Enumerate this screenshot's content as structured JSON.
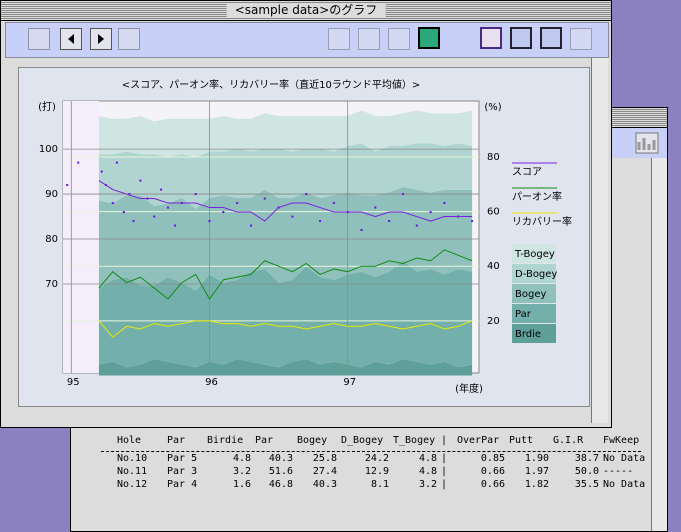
{
  "window": {
    "title": "<sample data>のグラフ"
  },
  "chart_data": {
    "type": "stacked-area-line",
    "title": "<スコア、パーオン率、リカバリー率（直近10ラウンド平均値）>",
    "ylabel": "(打)",
    "y2label": "(%)",
    "xlabel": "(年度)",
    "x": [
      95.2,
      95.3,
      95.4,
      95.5,
      95.6,
      95.7,
      95.8,
      95.9,
      96.0,
      96.1,
      96.2,
      96.3,
      96.4,
      96.5,
      96.6,
      96.7,
      96.8,
      96.9,
      97.0,
      97.1,
      97.2,
      97.3,
      97.4,
      97.5,
      97.6,
      97.7,
      97.8,
      97.9
    ],
    "xlim": [
      94.94,
      97.95
    ],
    "xticks": [
      95,
      96,
      97
    ],
    "ylim": [
      50.2,
      110.7
    ],
    "yticks": [
      70,
      80,
      90,
      100
    ],
    "y2lim": [
      0.9,
      100.5
    ],
    "y2ticks": [
      20,
      40,
      60,
      80
    ],
    "grid": true,
    "series": [
      {
        "name": "スコア",
        "color": "#7a1fe0",
        "axis": "y",
        "values": [
          93,
          91,
          90,
          89,
          89,
          88,
          88,
          88,
          87,
          87,
          86,
          86,
          84,
          87,
          88,
          88,
          87,
          86,
          86,
          86,
          85,
          86,
          86,
          85,
          84,
          85,
          85,
          85
        ]
      },
      {
        "name": "パーオン率",
        "color": "#138a13",
        "axis": "y2",
        "values": [
          32,
          38,
          34,
          36,
          32,
          28,
          34,
          37,
          28,
          35,
          36,
          37,
          42,
          40,
          38,
          41,
          37,
          39,
          38,
          40,
          40,
          42,
          41,
          43,
          42,
          46,
          44,
          42
        ]
      },
      {
        "name": "リカバリー率",
        "color": "#e6ea00",
        "axis": "y2",
        "values": [
          20,
          14,
          18,
          17,
          19,
          18,
          19,
          20,
          20,
          19,
          19,
          18,
          19,
          18,
          18,
          17,
          18,
          19,
          18,
          18,
          19,
          18,
          17,
          18,
          19,
          17,
          18,
          20
        ]
      }
    ],
    "bands": [
      {
        "name": "T-Bogey",
        "color": "#cfe5e2",
        "values": [
          14,
          13,
          12,
          14,
          12,
          14,
          13,
          14,
          12,
          13,
          11,
          12,
          13,
          12,
          13,
          12,
          12,
          13,
          11,
          12,
          13,
          11,
          12,
          12,
          11,
          12,
          11,
          13
        ]
      },
      {
        "name": "D-Bogey",
        "color": "#b0d4d0",
        "values": [
          17,
          18,
          16,
          15,
          19,
          17,
          16,
          19,
          17,
          16,
          18,
          17,
          15,
          18,
          17,
          16,
          18,
          16,
          17,
          19,
          16,
          17,
          15,
          17,
          18,
          16,
          17,
          16
        ]
      },
      {
        "name": "Bogey",
        "color": "#8fc0bc",
        "values": [
          32,
          28,
          30,
          33,
          29,
          27,
          31,
          30,
          28,
          32,
          30,
          27,
          29,
          31,
          30,
          27,
          29,
          31,
          30,
          28,
          30,
          29,
          27,
          30,
          28,
          31,
          29,
          30
        ]
      },
      {
        "name": "Par",
        "color": "#74b0ab",
        "values": [
          28,
          30,
          33,
          29,
          27,
          31,
          30,
          28,
          32,
          30,
          29,
          33,
          35,
          31,
          30,
          34,
          32,
          30,
          33,
          35,
          31,
          34,
          36,
          33,
          35,
          32,
          36,
          34
        ]
      },
      {
        "name": "Brdie",
        "color": "#5e9f9a",
        "values": [
          4,
          5,
          3,
          4,
          6,
          5,
          4,
          3,
          5,
          4,
          6,
          5,
          4,
          3,
          5,
          6,
          4,
          5,
          4,
          3,
          5,
          4,
          6,
          5,
          4,
          5,
          3,
          4
        ]
      }
    ],
    "scatter": {
      "color": "#6a10e0",
      "x": [
        95.22,
        95.25,
        95.3,
        95.33,
        95.38,
        95.42,
        95.45,
        95.5,
        95.55,
        95.6,
        95.65,
        95.7,
        95.75,
        95.8,
        95.9,
        96.0,
        96.1,
        96.2,
        96.3,
        96.4,
        96.5,
        96.6,
        96.7,
        96.8,
        96.9,
        97.0,
        97.1,
        97.2,
        97.3,
        97.4,
        97.5,
        97.6,
        97.7,
        97.8,
        97.9,
        94.97,
        95.05
      ],
      "values": [
        95,
        92,
        88,
        97,
        86,
        90,
        84,
        93,
        89,
        85,
        91,
        87,
        83,
        88,
        90,
        84,
        86,
        88,
        83,
        89,
        87,
        85,
        90,
        84,
        88,
        86,
        82,
        87,
        84,
        90,
        83,
        86,
        88,
        85,
        84,
        92,
        97
      ]
    }
  },
  "table": {
    "header": [
      "Hole",
      "Par",
      "Birdie",
      "Par",
      "Bogey",
      "D_Bogey",
      "T_Bogey",
      "|",
      "OverPar",
      "Putt",
      "G.I.R",
      "FwKeep"
    ],
    "rows": [
      [
        "No.10",
        "Par 5",
        "4.8",
        "40.3",
        "25.8",
        "24.2",
        "4.8",
        "|",
        "0.85",
        "1.90",
        "38.7",
        "No Data"
      ],
      [
        "No.11",
        "Par 3",
        "3.2",
        "51.6",
        "27.4",
        "12.9",
        "4.8",
        "|",
        "0.66",
        "1.97",
        "50.0",
        "-----"
      ],
      [
        "No.12",
        "Par 4",
        "1.6",
        "46.8",
        "40.3",
        "8.1",
        "3.2",
        "|",
        "0.66",
        "1.82",
        "35.5",
        "No Data"
      ]
    ]
  }
}
